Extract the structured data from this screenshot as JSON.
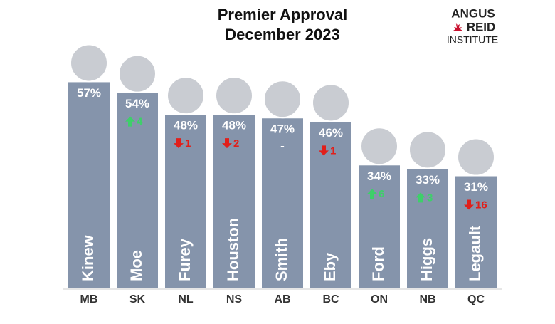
{
  "chart_data": {
    "type": "bar",
    "title": [
      "Premier Approval",
      "December 2023"
    ],
    "logo": [
      "ANGUS",
      "REID",
      "INSTITUTE"
    ],
    "categories": [
      "MB",
      "SK",
      "NL",
      "NS",
      "AB",
      "BC",
      "ON",
      "NB",
      "QC"
    ],
    "names": [
      "Kinew",
      "Moe",
      "Furey",
      "Houston",
      "Smith",
      "Eby",
      "Ford",
      "Higgs",
      "Legault"
    ],
    "values": [
      57,
      54,
      48,
      48,
      47,
      46,
      34,
      33,
      31
    ],
    "value_labels": [
      "57%",
      "54%",
      "48%",
      "48%",
      "47%",
      "46%",
      "34%",
      "33%",
      "31%"
    ],
    "changes": [
      null,
      4,
      -1,
      -2,
      0,
      -1,
      6,
      3,
      -16
    ],
    "change_labels": [
      null,
      "4",
      "1",
      "2",
      "-",
      "1",
      "6",
      "3",
      "16"
    ],
    "color": "#8594ab",
    "up_color": "#3ecf6a",
    "down_color": "#e11f1a"
  }
}
